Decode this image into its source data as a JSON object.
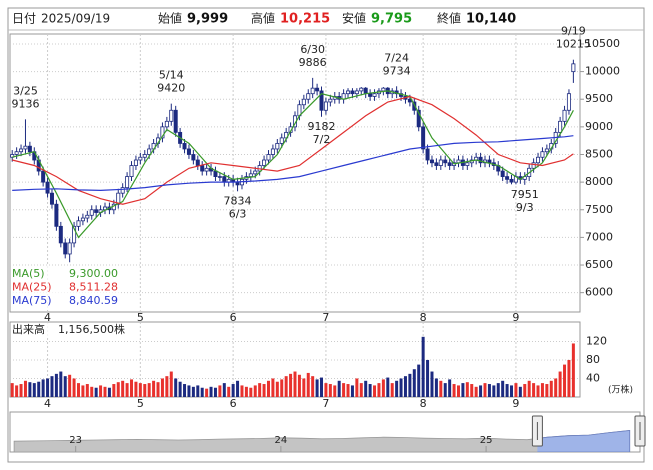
{
  "header": {
    "date_label": "日付",
    "date": "2025/09/19",
    "items": [
      {
        "label": "始値",
        "value": "9,999",
        "color": "#111111"
      },
      {
        "label": "高値",
        "value": "10,215",
        "color": "#e02020"
      },
      {
        "label": "安値",
        "value": "9,795",
        "color": "#1a9a1a"
      },
      {
        "label": "終値",
        "value": "10,140",
        "color": "#111111"
      }
    ]
  },
  "chart_data": {
    "type": "candlestick",
    "open": [
      8450,
      8500,
      8550,
      8600,
      8650,
      8550,
      8400,
      8200,
      8000,
      7800,
      7600,
      7200,
      6900,
      6700,
      6900,
      7200,
      7300,
      7350,
      7400,
      7500,
      7450,
      7500,
      7550,
      7500,
      7600,
      7800,
      7900,
      8100,
      8300,
      8400,
      8450,
      8500,
      8600,
      8700,
      8800,
      9000,
      9100,
      9300,
      8900,
      8700,
      8600,
      8500,
      8400,
      8300,
      8200,
      8250,
      8200,
      8100,
      8100,
      8000,
      8050,
      8000,
      7950,
      8050,
      8100,
      8150,
      8200,
      8300,
      8400,
      8500,
      8600,
      8700,
      8800,
      8900,
      9000,
      9200,
      9400,
      9500,
      9600,
      9700,
      9650,
      9300,
      9450,
      9500,
      9550,
      9500,
      9600,
      9650,
      9600,
      9650,
      9700,
      9600,
      9550,
      9600,
      9650,
      9700,
      9600,
      9650,
      9600,
      9550,
      9500,
      9450,
      9300,
      9000,
      8600,
      8400,
      8350,
      8300,
      8400,
      8350,
      8300,
      8350,
      8400,
      8300,
      8350,
      8400,
      8450,
      8350,
      8400,
      8350,
      8300,
      8200,
      8100,
      8050,
      8000,
      8100,
      8050,
      8100,
      8250,
      8350,
      8450,
      8550,
      8600,
      8700,
      8900,
      9100,
      9300,
      9999
    ],
    "high": [
      8580,
      8630,
      8680,
      9136,
      8730,
      8630,
      8480,
      8280,
      8080,
      7880,
      7680,
      7280,
      6980,
      6980,
      7280,
      7380,
      7430,
      7480,
      7580,
      7580,
      7580,
      7630,
      7630,
      7680,
      7880,
      7980,
      8180,
      8380,
      8480,
      8530,
      8580,
      8680,
      8780,
      8880,
      9080,
      9180,
      9420,
      9380,
      8980,
      8780,
      8680,
      8580,
      8480,
      8380,
      8330,
      8330,
      8280,
      8180,
      8180,
      8130,
      8130,
      8080,
      8130,
      8180,
      8230,
      8280,
      8380,
      8480,
      8580,
      8680,
      8780,
      8880,
      8980,
      9080,
      9280,
      9480,
      9580,
      9680,
      9886,
      9780,
      9730,
      9530,
      9580,
      9630,
      9630,
      9680,
      9700,
      9700,
      9700,
      9720,
      9720,
      9680,
      9680,
      9700,
      9720,
      9720,
      9700,
      9734,
      9680,
      9630,
      9580,
      9530,
      9380,
      9080,
      8680,
      8480,
      8430,
      8480,
      8480,
      8430,
      8430,
      8480,
      8480,
      8430,
      8480,
      8530,
      8530,
      8480,
      8480,
      8430,
      8380,
      8280,
      8180,
      8130,
      8180,
      8180,
      8180,
      8330,
      8430,
      8530,
      8630,
      8680,
      8780,
      8980,
      9180,
      9380,
      9680,
      10215
    ],
    "low": [
      8370,
      8420,
      8470,
      8520,
      8470,
      8320,
      8120,
      7920,
      7720,
      7520,
      7120,
      6820,
      6620,
      6550,
      6820,
      7120,
      7220,
      7270,
      7320,
      7370,
      7370,
      7420,
      7420,
      7420,
      7520,
      7720,
      7820,
      8020,
      8220,
      8320,
      8370,
      8420,
      8520,
      8620,
      8720,
      8920,
      9020,
      8820,
      8620,
      8520,
      8420,
      8320,
      8220,
      8120,
      8120,
      8120,
      8020,
      8020,
      7920,
      7920,
      7920,
      7834,
      7870,
      7970,
      8020,
      8070,
      8120,
      8220,
      8320,
      8420,
      8520,
      8620,
      8720,
      8820,
      8920,
      9120,
      9320,
      9420,
      9520,
      9570,
      9182,
      9220,
      9370,
      9420,
      9420,
      9420,
      9520,
      9520,
      9520,
      9570,
      9520,
      9470,
      9470,
      9520,
      9570,
      9520,
      9520,
      9520,
      9470,
      9420,
      9370,
      9220,
      8920,
      8520,
      8320,
      8270,
      8220,
      8220,
      8270,
      8220,
      8220,
      8270,
      8220,
      8220,
      8270,
      8320,
      8270,
      8270,
      8270,
      8220,
      8120,
      8020,
      7970,
      7960,
      7960,
      7970,
      7951,
      8020,
      8170,
      8270,
      8370,
      8470,
      8520,
      8620,
      8820,
      9020,
      9220,
      9795
    ],
    "close": [
      8500,
      8550,
      8600,
      8650,
      8550,
      8400,
      8200,
      8000,
      7800,
      7600,
      7200,
      6900,
      6700,
      6900,
      7200,
      7300,
      7350,
      7400,
      7500,
      7450,
      7500,
      7550,
      7500,
      7600,
      7800,
      7900,
      8100,
      8300,
      8400,
      8450,
      8500,
      8600,
      8700,
      8800,
      9000,
      9100,
      9300,
      8900,
      8700,
      8600,
      8500,
      8400,
      8300,
      8200,
      8250,
      8200,
      8100,
      8100,
      8000,
      8050,
      8000,
      7950,
      8050,
      8100,
      8150,
      8200,
      8300,
      8400,
      8500,
      8600,
      8700,
      8800,
      8900,
      9000,
      9200,
      9400,
      9500,
      9600,
      9700,
      9650,
      9300,
      9450,
      9500,
      9550,
      9500,
      9600,
      9650,
      9600,
      9650,
      9700,
      9600,
      9550,
      9600,
      9650,
      9700,
      9600,
      9650,
      9600,
      9550,
      9500,
      9450,
      9300,
      9000,
      8600,
      8400,
      8350,
      8300,
      8400,
      8350,
      8300,
      8350,
      8400,
      8300,
      8350,
      8400,
      8450,
      8350,
      8400,
      8350,
      8300,
      8200,
      8100,
      8050,
      8000,
      8100,
      8050,
      8100,
      8250,
      8350,
      8450,
      8550,
      8600,
      8700,
      8900,
      9100,
      9300,
      9600,
      10140
    ],
    "up_color": "#ffffff",
    "down_color": "#1c2a80",
    "edge_color": "#1c2a80",
    "xlim": [
      -0.5,
      128.5
    ],
    "xticks": [
      {
        "value": 8,
        "label": "4"
      },
      {
        "value": 29,
        "label": "5"
      },
      {
        "value": 50,
        "label": "6"
      },
      {
        "value": 71,
        "label": "7"
      },
      {
        "value": 93,
        "label": "8"
      },
      {
        "value": 114,
        "label": "9"
      }
    ],
    "ylim": [
      5650,
      10680
    ],
    "yticks": [
      6000,
      6500,
      7000,
      7500,
      8000,
      8500,
      9000,
      9500,
      10000,
      10500
    ],
    "grid": true,
    "annotations": [
      {
        "date": "3/25",
        "value": 9136
      },
      {
        "date": "5/14",
        "value": 9420
      },
      {
        "date": "6/3",
        "value": 7834
      },
      {
        "date": "6/30",
        "value": 9886
      },
      {
        "date": "7/2",
        "value": 9182
      },
      {
        "date": "7/24",
        "value": 9734
      },
      {
        "date": "9/3",
        "value": 7951
      },
      {
        "date": "9/19",
        "value": 10215
      }
    ],
    "ma": {
      "x": [
        0,
        5,
        10,
        15,
        20,
        25,
        30,
        35,
        40,
        45,
        50,
        55,
        60,
        65,
        70,
        75,
        80,
        85,
        90,
        95,
        100,
        105,
        110,
        115,
        120,
        125,
        127
      ],
      "series": [
        {
          "name": "MA(5)",
          "color": "#3a9a2a",
          "values": [
            8450,
            8550,
            7800,
            7000,
            7450,
            7650,
            8350,
            8950,
            8700,
            8250,
            8050,
            8100,
            8500,
            9200,
            9600,
            9500,
            9600,
            9650,
            9550,
            8800,
            8330,
            8400,
            8300,
            8050,
            8350,
            9000,
            9300
          ],
          "value_labels": [
            null,
            null,
            null,
            null,
            null,
            null,
            null,
            null,
            null,
            null,
            null,
            null,
            null,
            null,
            null,
            null,
            null,
            null,
            null,
            null,
            null,
            null,
            null,
            null,
            null,
            null,
            "9,300.00"
          ]
        },
        {
          "name": "MA(25)",
          "color": "#e03030",
          "values": [
            8400,
            8300,
            8100,
            7850,
            7700,
            7600,
            7700,
            8000,
            8250,
            8350,
            8300,
            8250,
            8200,
            8300,
            8600,
            8900,
            9200,
            9450,
            9550,
            9400,
            9150,
            8850,
            8500,
            8350,
            8300,
            8400,
            8511.28
          ],
          "value_labels": [
            null,
            null,
            null,
            null,
            null,
            null,
            null,
            null,
            null,
            null,
            null,
            null,
            null,
            null,
            null,
            null,
            null,
            null,
            null,
            null,
            null,
            null,
            null,
            null,
            null,
            null,
            "8,511.28"
          ]
        },
        {
          "name": "MA(75)",
          "color": "#2a3ad0",
          "values": [
            7850,
            7870,
            7880,
            7860,
            7850,
            7870,
            7900,
            7950,
            7980,
            8000,
            8000,
            8020,
            8050,
            8100,
            8200,
            8300,
            8400,
            8500,
            8600,
            8650,
            8700,
            8720,
            8730,
            8760,
            8790,
            8820,
            8840.59
          ],
          "value_labels": [
            null,
            null,
            null,
            null,
            null,
            null,
            null,
            null,
            null,
            null,
            null,
            null,
            null,
            null,
            null,
            null,
            null,
            null,
            null,
            null,
            null,
            null,
            null,
            null,
            null,
            null,
            "8,840.59"
          ]
        }
      ]
    },
    "volume": {
      "name": "出来高",
      "unit": "(万株)",
      "up_color": "#e8312d",
      "down_color": "#1c2a80",
      "values": [
        30,
        25,
        28,
        35,
        32,
        30,
        33,
        38,
        40,
        45,
        50,
        55,
        45,
        48,
        40,
        30,
        25,
        28,
        22,
        20,
        25,
        22,
        20,
        28,
        32,
        35,
        30,
        38,
        33,
        30,
        28,
        30,
        35,
        32,
        40,
        45,
        55,
        40,
        33,
        28,
        25,
        22,
        25,
        20,
        18,
        22,
        20,
        25,
        30,
        22,
        28,
        35,
        25,
        22,
        20,
        25,
        30,
        28,
        35,
        40,
        33,
        38,
        45,
        50,
        55,
        48,
        40,
        52,
        45,
        38,
        42,
        30,
        28,
        25,
        35,
        30,
        28,
        25,
        40,
        30,
        35,
        28,
        25,
        30,
        38,
        42,
        30,
        35,
        40,
        45,
        50,
        60,
        70,
        130,
        80,
        55,
        40,
        35,
        30,
        38,
        28,
        25,
        30,
        32,
        28,
        22,
        25,
        30,
        28,
        25,
        30,
        35,
        28,
        25,
        30,
        22,
        28,
        35,
        30,
        25,
        30,
        28,
        35,
        40,
        55,
        70,
        80,
        115.65
      ],
      "value_labels": [
        null,
        null,
        null,
        null,
        null,
        null,
        null,
        null,
        null,
        null,
        null,
        null,
        null,
        null,
        null,
        null,
        null,
        null,
        null,
        null,
        null,
        null,
        null,
        null,
        null,
        null,
        null,
        null,
        null,
        null,
        null,
        null,
        null,
        null,
        null,
        null,
        null,
        null,
        null,
        null,
        null,
        null,
        null,
        null,
        null,
        null,
        null,
        null,
        null,
        null,
        null,
        null,
        null,
        null,
        null,
        null,
        null,
        null,
        null,
        null,
        null,
        null,
        null,
        null,
        null,
        null,
        null,
        null,
        null,
        null,
        null,
        null,
        null,
        null,
        null,
        null,
        null,
        null,
        null,
        null,
        null,
        null,
        null,
        null,
        null,
        null,
        null,
        null,
        null,
        null,
        null,
        null,
        null,
        null,
        null,
        null,
        null,
        null,
        null,
        null,
        null,
        null,
        null,
        null,
        null,
        null,
        null,
        null,
        null,
        null,
        null,
        null,
        null,
        null,
        null,
        null,
        null,
        null,
        null,
        null,
        null,
        null,
        null,
        null,
        null,
        null,
        null,
        "1,156,500株"
      ],
      "ylim": [
        0,
        162
      ],
      "yticks": [
        40,
        80,
        120
      ]
    },
    "navigator": {
      "x": [
        2022.7,
        2022.8,
        2022.9,
        2023.0,
        2023.1,
        2023.2,
        2023.3,
        2023.4,
        2023.5,
        2023.6,
        2023.7,
        2023.8,
        2023.9,
        2024.0,
        2024.1,
        2024.2,
        2024.3,
        2024.4,
        2024.5,
        2024.6,
        2024.7,
        2024.8,
        2024.9,
        2025.0,
        2025.1,
        2025.2,
        2025.3,
        2025.4,
        2025.5,
        2025.6,
        2025.7
      ],
      "values": [
        6500,
        6600,
        6700,
        6800,
        6900,
        7000,
        7100,
        7000,
        6900,
        7000,
        7200,
        7300,
        7400,
        7600,
        7500,
        7300,
        7400,
        7600,
        7800,
        7700,
        7500,
        7400,
        7300,
        7500,
        7200,
        7000,
        7800,
        8300,
        8500,
        9300,
        10000
      ],
      "xlim": [
        2022.68,
        2025.75
      ],
      "ylim": [
        3000,
        16000
      ],
      "xticks": [
        {
          "value": 2023,
          "label": "23"
        },
        {
          "value": 2024,
          "label": "24"
        },
        {
          "value": 2025,
          "label": "25"
        }
      ],
      "range": [
        2025.25,
        2025.75
      ],
      "color": "#c4c4c4",
      "range_color": "#9fb4e8"
    }
  }
}
